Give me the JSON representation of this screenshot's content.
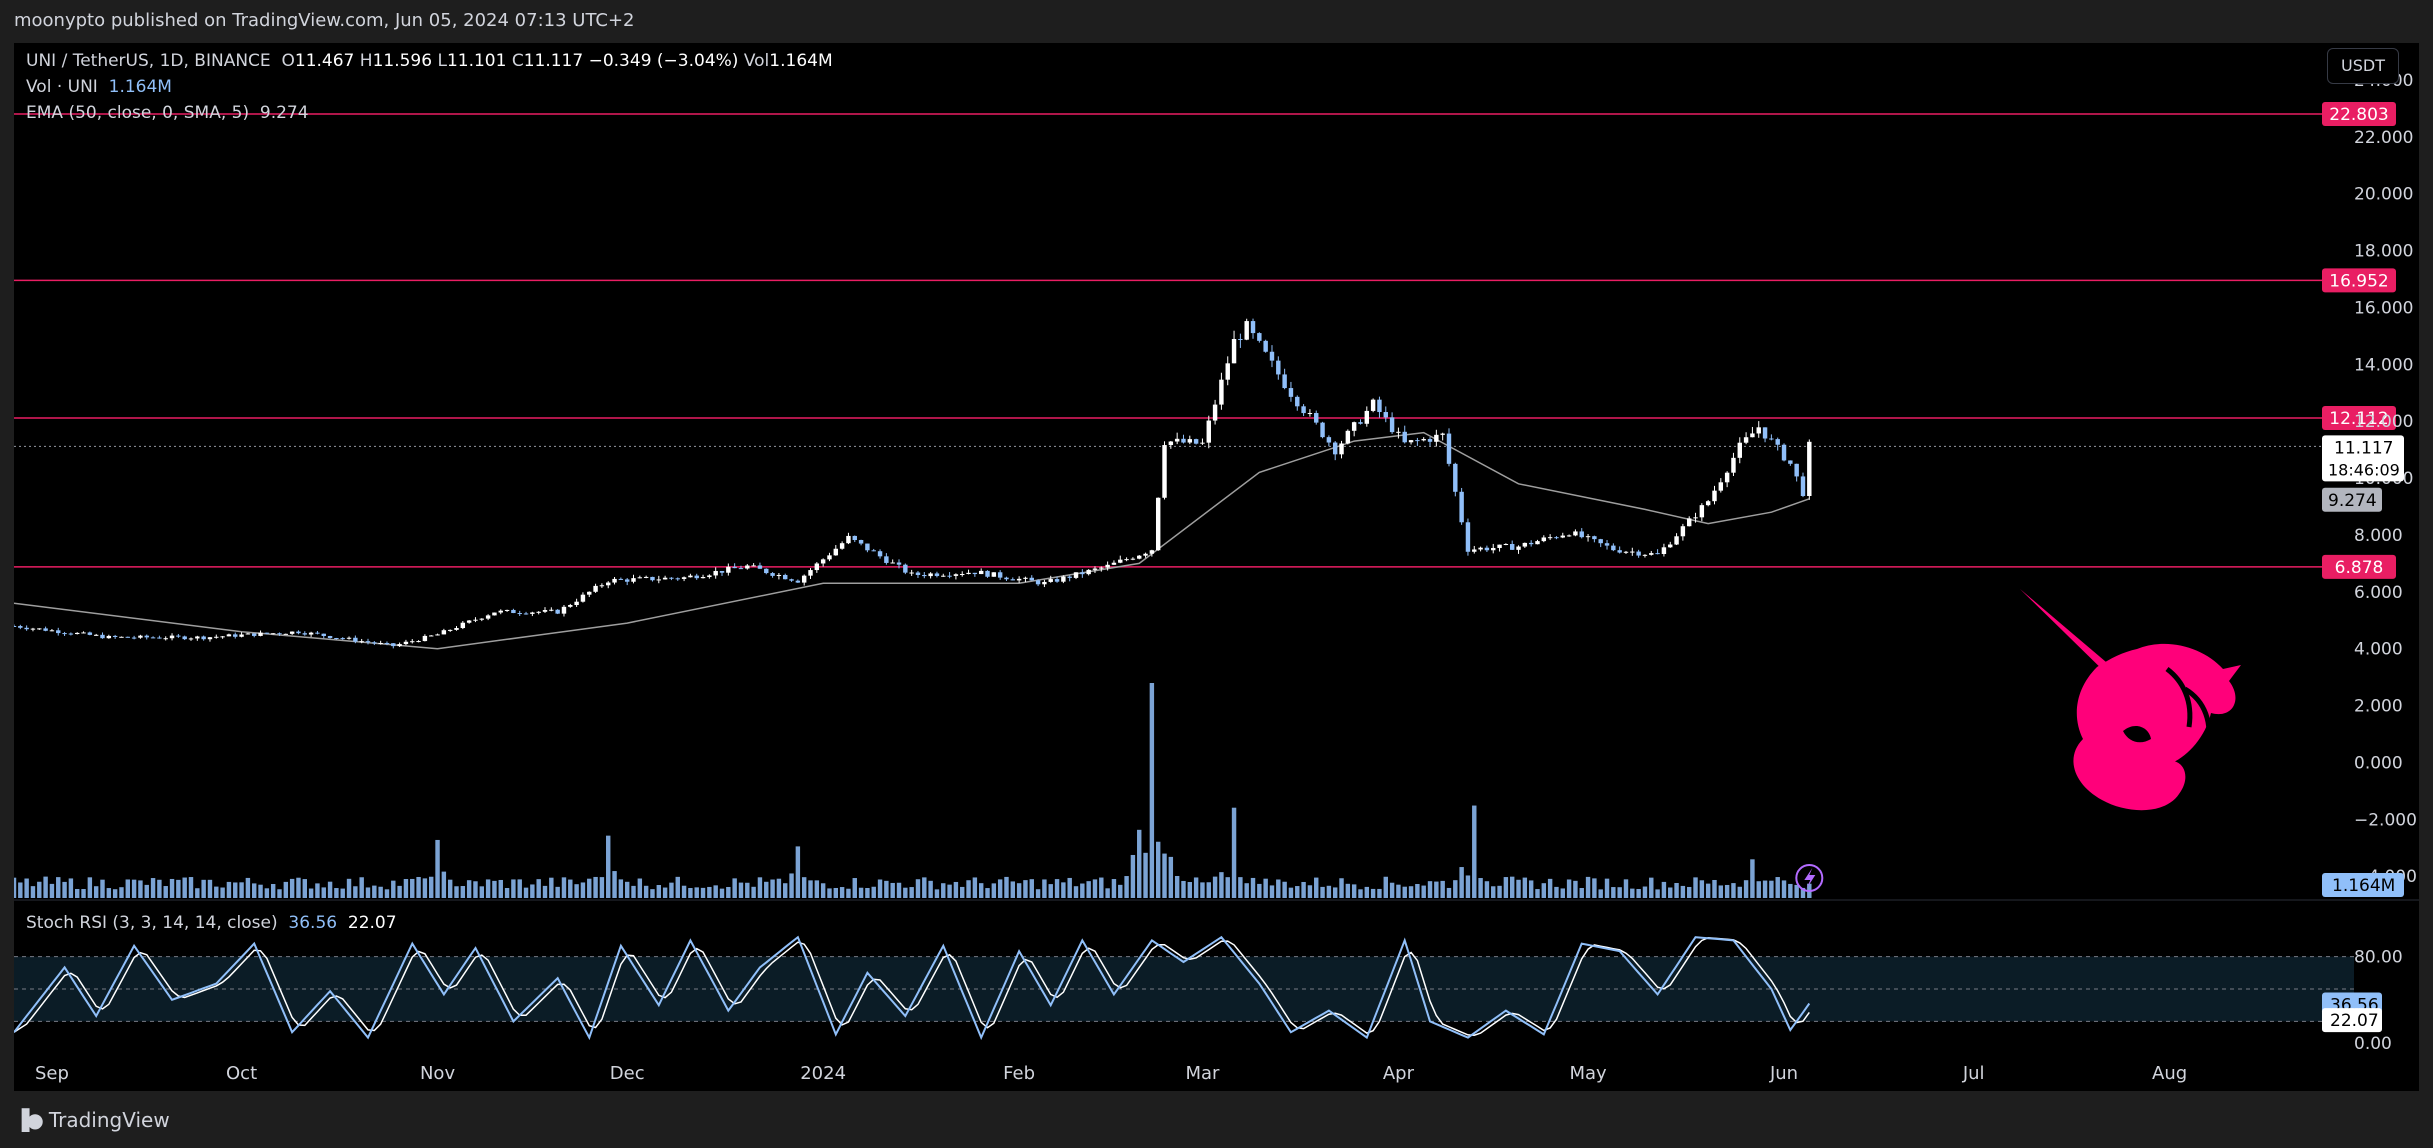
{
  "header": {
    "publisher_line": "moonypto published on TradingView.com, Jun 05, 2024 07:13 UTC+2"
  },
  "legend": {
    "symbol": "UNI / TetherUS, 1D, BINANCE",
    "open_label": "O",
    "open": "11.467",
    "high_label": "H",
    "high": "11.596",
    "low_label": "L",
    "low": "11.101",
    "close_label": "C",
    "close": "11.117",
    "change": "−0.349 (−3.04%)",
    "vol_label": "Vol",
    "vol": "1.164M",
    "vol_indicator": "Vol · UNI",
    "vol_indicator_value": "1.164M",
    "ema_indicator": "EMA (50, close, 0, SMA, 5)",
    "ema_value": "9.274",
    "stoch_indicator": "Stoch RSI (3, 3, 14, 14, close)",
    "stoch_k": "36.56",
    "stoch_d": "22.07"
  },
  "currency_button": "USDT",
  "footer": {
    "brand": "TradingView",
    "logo": "tradingview-logo-icon"
  },
  "colors": {
    "background": "#000000",
    "up_candle": "#ffffff",
    "down_candle": "#90bff9",
    "level_line": "#e91e63",
    "ema_line": "#9e9e9e",
    "stoch_k": "#90bff9",
    "stoch_d": "#ffffff",
    "volume": "#90bff9",
    "uniswap_logo": "#ff007a"
  },
  "chart_data": {
    "type": "candlestick",
    "title": "UNI / TetherUS, 1D, BINANCE",
    "price_axis": {
      "ticks": [
        "24.000",
        "22.000",
        "20.000",
        "18.000",
        "16.000",
        "14.000",
        "12.000",
        "10.000",
        "8.000",
        "6.000",
        "4.000",
        "2.000",
        "0.000",
        "−2.000",
        "−4.000"
      ],
      "ylim": [
        -4.8,
        25.3
      ]
    },
    "x_axis": {
      "labels": [
        "Sep",
        "Oct",
        "Nov",
        "Dec",
        "2024",
        "Feb",
        "Mar",
        "Apr",
        "May",
        "Jun",
        "Jul",
        "Aug"
      ],
      "label_dates": [
        "2023-09-01",
        "2023-10-01",
        "2023-11-01",
        "2023-12-01",
        "2024-01-01",
        "2024-02-01",
        "2024-03-01",
        "2024-04-01",
        "2024-05-01",
        "2024-06-01",
        "2024-07-01",
        "2024-08-01"
      ],
      "range": [
        "2023-08-26",
        "2024-08-27"
      ]
    },
    "horizontal_levels": [
      22.803,
      16.952,
      12.112,
      6.878
    ],
    "price_badges": {
      "last_price": "11.117",
      "countdown": "18:46:09",
      "ema_value": "9.274",
      "volume_value": "1.164M"
    },
    "price_path": {
      "dates": [
        "2023-08-26",
        "2023-09-10",
        "2023-09-25",
        "2023-10-10",
        "2023-10-25",
        "2023-11-01",
        "2023-11-10",
        "2023-11-20",
        "2023-11-28",
        "2023-12-10",
        "2023-12-20",
        "2023-12-28",
        "2024-01-05",
        "2024-01-15",
        "2024-01-25",
        "2024-02-05",
        "2024-02-15",
        "2024-02-22",
        "2024-02-24",
        "2024-03-01",
        "2024-03-06",
        "2024-03-08",
        "2024-03-15",
        "2024-03-22",
        "2024-03-28",
        "2024-04-02",
        "2024-04-08",
        "2024-04-12",
        "2024-04-20",
        "2024-04-28",
        "2024-05-05",
        "2024-05-12",
        "2024-05-20",
        "2024-05-25",
        "2024-05-28",
        "2024-06-02",
        "2024-06-04",
        "2024-06-05"
      ],
      "close": [
        4.8,
        4.4,
        4.4,
        4.6,
        4.1,
        4.5,
        5.3,
        5.3,
        6.4,
        6.5,
        6.9,
        6.4,
        7.9,
        6.6,
        6.7,
        6.3,
        6.9,
        7.5,
        11.3,
        11.2,
        14.8,
        15.3,
        13.0,
        11.0,
        12.6,
        11.2,
        11.5,
        7.5,
        7.6,
        8.1,
        7.5,
        7.3,
        9.2,
        11.1,
        11.8,
        10.5,
        9.5,
        11.117
      ]
    },
    "ema50_path": {
      "dates": [
        "2023-08-26",
        "2023-10-01",
        "2023-11-01",
        "2023-12-01",
        "2024-01-01",
        "2024-02-01",
        "2024-02-20",
        "2024-03-10",
        "2024-03-25",
        "2024-04-05",
        "2024-04-20",
        "2024-05-10",
        "2024-05-20",
        "2024-05-30",
        "2024-06-05"
      ],
      "value": [
        5.6,
        4.6,
        4.0,
        4.9,
        6.3,
        6.3,
        7.0,
        10.2,
        11.3,
        11.6,
        9.8,
        8.9,
        8.4,
        8.8,
        9.274
      ]
    },
    "volume_panel": {
      "last_value": "1.164M",
      "notable_spikes": [
        {
          "date": "2024-02-22",
          "relative": 1.0
        },
        {
          "date": "2024-03-06",
          "relative": 0.42
        },
        {
          "date": "2024-04-13",
          "relative": 0.43
        },
        {
          "date": "2023-11-01",
          "relative": 0.27
        },
        {
          "date": "2023-11-28",
          "relative": 0.29
        },
        {
          "date": "2023-12-28",
          "relative": 0.24
        },
        {
          "date": "2024-05-27",
          "relative": 0.18
        }
      ]
    },
    "stoch_rsi": {
      "name": "Stoch RSI (3, 3, 14, 14, close)",
      "ticks": [
        "80.00",
        "0.00"
      ],
      "bands": [
        80,
        50,
        20
      ],
      "ylim": [
        0,
        100
      ],
      "last_k": 36.56,
      "last_d": 22.07,
      "k_path": {
        "dates": [
          "2023-08-26",
          "2023-09-03",
          "2023-09-08",
          "2023-09-14",
          "2023-09-20",
          "2023-09-27",
          "2023-10-03",
          "2023-10-09",
          "2023-10-15",
          "2023-10-21",
          "2023-10-28",
          "2023-11-02",
          "2023-11-07",
          "2023-11-13",
          "2023-11-20",
          "2023-11-25",
          "2023-11-30",
          "2023-12-06",
          "2023-12-11",
          "2023-12-17",
          "2023-12-22",
          "2023-12-28",
          "2024-01-03",
          "2024-01-08",
          "2024-01-14",
          "2024-01-20",
          "2024-01-26",
          "2024-02-01",
          "2024-02-06",
          "2024-02-11",
          "2024-02-16",
          "2024-02-22",
          "2024-02-27",
          "2024-03-04",
          "2024-03-10",
          "2024-03-15",
          "2024-03-21",
          "2024-03-27",
          "2024-04-02",
          "2024-04-06",
          "2024-04-12",
          "2024-04-18",
          "2024-04-24",
          "2024-04-30",
          "2024-05-06",
          "2024-05-12",
          "2024-05-18",
          "2024-05-24",
          "2024-05-30",
          "2024-06-02",
          "2024-06-05"
        ],
        "values": [
          10,
          70,
          25,
          90,
          40,
          55,
          92,
          10,
          48,
          5,
          92,
          45,
          88,
          20,
          60,
          5,
          90,
          35,
          95,
          30,
          70,
          98,
          8,
          65,
          25,
          90,
          5,
          85,
          35,
          95,
          45,
          95,
          75,
          98,
          55,
          10,
          30,
          5,
          95,
          20,
          5,
          30,
          8,
          92,
          85,
          45,
          98,
          95,
          50,
          12,
          36.56
        ]
      }
    }
  }
}
